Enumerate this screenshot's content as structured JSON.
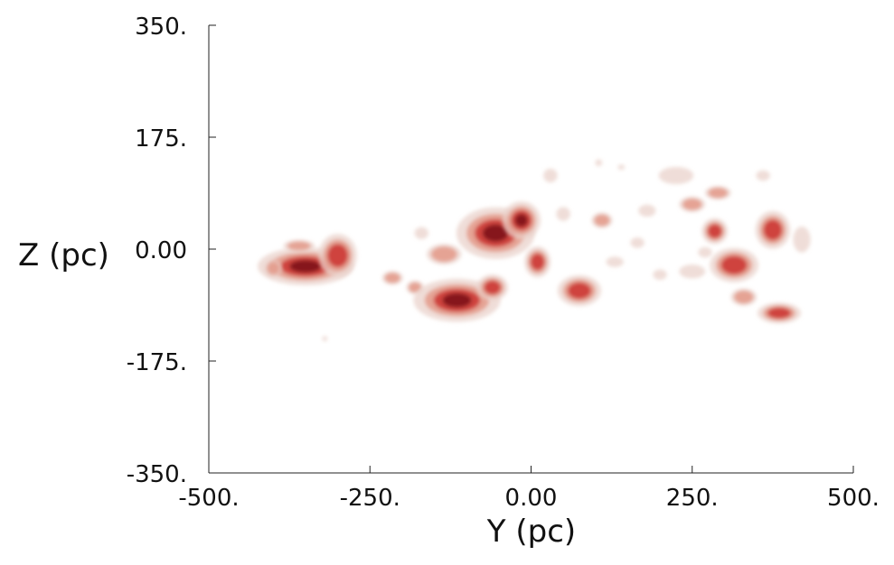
{
  "chart_data": {
    "type": "heatmap",
    "title": "",
    "xlabel": "Y (pc)",
    "ylabel": "Z (pc)",
    "xlim": [
      -500,
      500
    ],
    "ylim": [
      -350,
      350
    ],
    "x_ticks": [
      {
        "value": -500,
        "label": "-500."
      },
      {
        "value": -250,
        "label": "-250."
      },
      {
        "value": 0,
        "label": "0.00"
      },
      {
        "value": 250,
        "label": "250."
      },
      {
        "value": 500,
        "label": "500."
      }
    ],
    "y_ticks": [
      {
        "value": 350,
        "label": "350."
      },
      {
        "value": 175,
        "label": "175."
      },
      {
        "value": 0,
        "label": "0.00"
      },
      {
        "value": -175,
        "label": "-175."
      },
      {
        "value": -350,
        "label": "-350."
      }
    ],
    "grid": false,
    "legend": "none",
    "colors": {
      "halo": "#ead2cb",
      "low": "#e49a88",
      "mid": "#cc3a34",
      "high": "#7e1518"
    },
    "clouds": [
      {
        "x": -350,
        "y": -27,
        "rx": 55,
        "ry": 22,
        "level": 4
      },
      {
        "x": -300,
        "y": -10,
        "rx": 22,
        "ry": 25,
        "level": 3
      },
      {
        "x": -400,
        "y": -30,
        "rx": 10,
        "ry": 10,
        "level": 2
      },
      {
        "x": -360,
        "y": 5,
        "rx": 18,
        "ry": 7,
        "level": 2
      },
      {
        "x": -215,
        "y": -45,
        "rx": 12,
        "ry": 8,
        "level": 2
      },
      {
        "x": -180,
        "y": -60,
        "rx": 10,
        "ry": 8,
        "level": 2
      },
      {
        "x": -135,
        "y": -8,
        "rx": 20,
        "ry": 12,
        "level": 2
      },
      {
        "x": -115,
        "y": -80,
        "rx": 50,
        "ry": 25,
        "level": 4
      },
      {
        "x": -60,
        "y": -60,
        "rx": 18,
        "ry": 15,
        "level": 3
      },
      {
        "x": -55,
        "y": 25,
        "rx": 45,
        "ry": 30,
        "level": 4
      },
      {
        "x": -15,
        "y": 45,
        "rx": 22,
        "ry": 22,
        "level": 4
      },
      {
        "x": 10,
        "y": -20,
        "rx": 15,
        "ry": 18,
        "level": 3
      },
      {
        "x": 75,
        "y": -65,
        "rx": 25,
        "ry": 18,
        "level": 3
      },
      {
        "x": 110,
        "y": 45,
        "rx": 12,
        "ry": 9,
        "level": 2
      },
      {
        "x": 250,
        "y": 70,
        "rx": 15,
        "ry": 9,
        "level": 2
      },
      {
        "x": 290,
        "y": 88,
        "rx": 15,
        "ry": 8,
        "level": 2
      },
      {
        "x": 285,
        "y": 28,
        "rx": 15,
        "ry": 15,
        "level": 3
      },
      {
        "x": 315,
        "y": -25,
        "rx": 28,
        "ry": 20,
        "level": 3
      },
      {
        "x": 375,
        "y": 30,
        "rx": 20,
        "ry": 22,
        "level": 3
      },
      {
        "x": 330,
        "y": -75,
        "rx": 15,
        "ry": 10,
        "level": 2
      },
      {
        "x": 385,
        "y": -100,
        "rx": 25,
        "ry": 12,
        "level": 3
      },
      {
        "x": 225,
        "y": 115,
        "rx": 20,
        "ry": 10,
        "level": 1
      },
      {
        "x": 250,
        "y": -35,
        "rx": 15,
        "ry": 8,
        "level": 1
      },
      {
        "x": 180,
        "y": 60,
        "rx": 10,
        "ry": 7,
        "level": 1
      },
      {
        "x": 165,
        "y": 10,
        "rx": 8,
        "ry": 6,
        "level": 1
      },
      {
        "x": 420,
        "y": 15,
        "rx": 10,
        "ry": 15,
        "level": 1
      },
      {
        "x": -170,
        "y": 25,
        "rx": 8,
        "ry": 7,
        "level": 1
      },
      {
        "x": 30,
        "y": 115,
        "rx": 8,
        "ry": 8,
        "level": 1
      },
      {
        "x": 130,
        "y": -20,
        "rx": 10,
        "ry": 6,
        "level": 1
      },
      {
        "x": 50,
        "y": 55,
        "rx": 8,
        "ry": 8,
        "level": 1
      },
      {
        "x": 270,
        "y": -5,
        "rx": 8,
        "ry": 6,
        "level": 1
      },
      {
        "x": 200,
        "y": -40,
        "rx": 8,
        "ry": 6,
        "level": 1
      },
      {
        "x": 105,
        "y": 135,
        "rx": 4,
        "ry": 4,
        "level": 1
      },
      {
        "x": 140,
        "y": 128,
        "rx": 4,
        "ry": 3,
        "level": 1
      },
      {
        "x": 360,
        "y": 115,
        "rx": 8,
        "ry": 6,
        "level": 1
      },
      {
        "x": -320,
        "y": -140,
        "rx": 3,
        "ry": 3,
        "level": 1
      }
    ]
  }
}
